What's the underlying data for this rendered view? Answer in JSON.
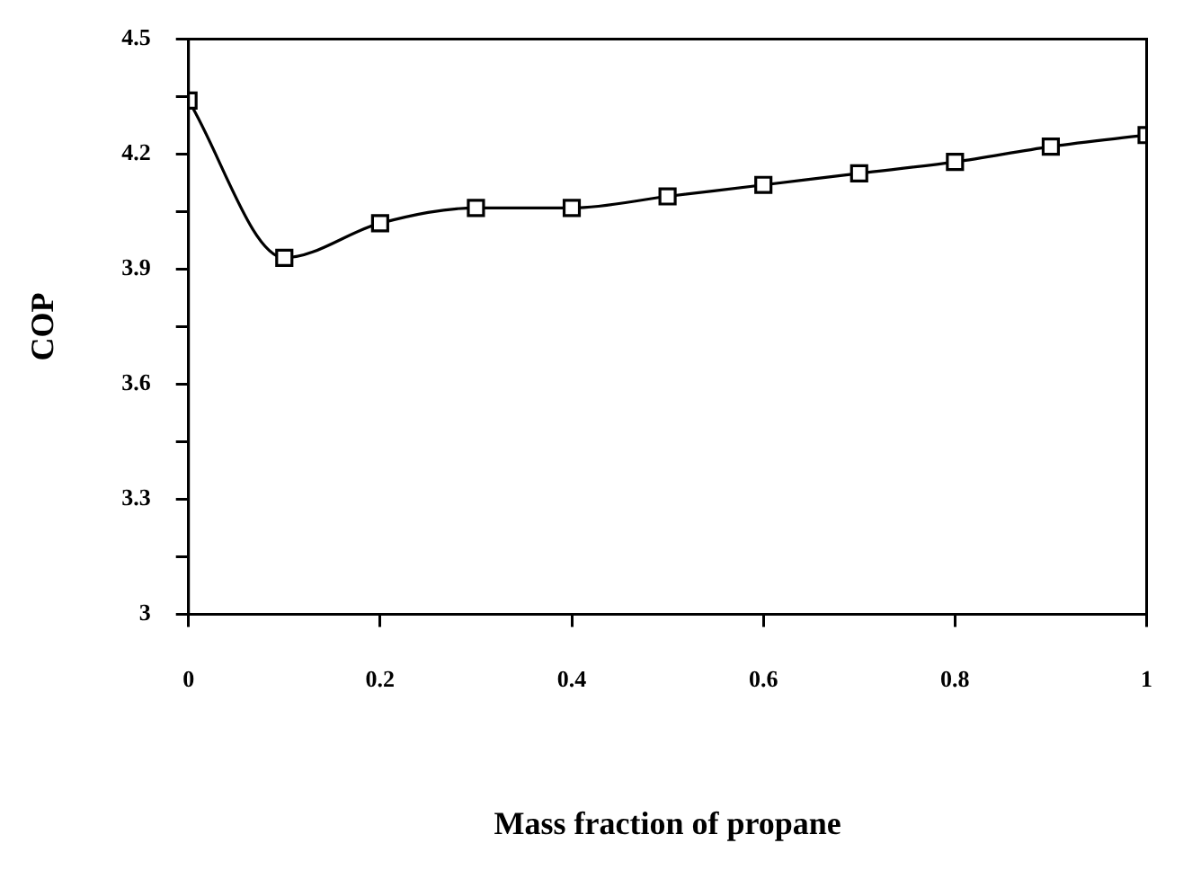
{
  "chart_data": {
    "type": "line",
    "xlabel": "Mass fraction of propane",
    "ylabel": "COP",
    "x": [
      0,
      0.1,
      0.2,
      0.3,
      0.4,
      0.5,
      0.6,
      0.7,
      0.8,
      0.9,
      1
    ],
    "series": [
      {
        "color": "#000000",
        "values": [
          4.34,
          3.93,
          4.02,
          4.06,
          4.06,
          4.09,
          4.12,
          4.15,
          4.18,
          4.22,
          4.25
        ]
      }
    ],
    "xlim": [
      0,
      1
    ],
    "xticks": [
      0,
      0.2,
      0.4,
      0.6,
      0.8,
      1
    ],
    "ylim": [
      3,
      4.5
    ],
    "yticks": [
      3,
      {
        "value": 3.15,
        "label": null
      },
      3.3,
      {
        "value": 3.45,
        "label": null
      },
      3.6,
      {
        "value": 3.75,
        "label": null
      },
      3.9,
      {
        "value": 4.05,
        "label": null
      },
      4.2,
      {
        "value": 4.35,
        "label": null
      },
      4.5
    ],
    "grid": false,
    "legend": false,
    "marker": "square",
    "line_style": "solid"
  }
}
